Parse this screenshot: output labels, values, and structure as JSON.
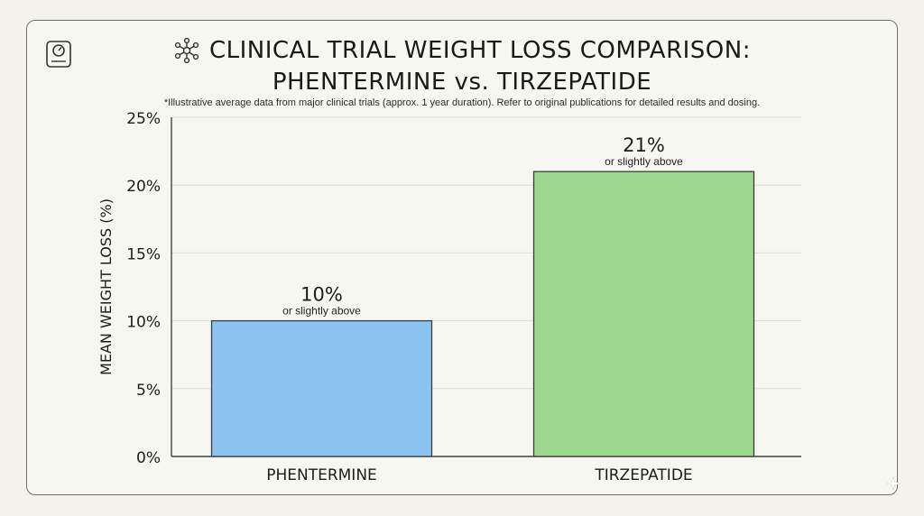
{
  "header": {
    "title_line1": "CLINICAL TRIAL WEIGHT LOSS COMPARISON:",
    "title_line2": "PHENTERMINE vs. TIRZEPATIDE",
    "subtitle": "*Illustrative average data from major clinical trials (approx. 1 year duration). Refer to original publications for detailed results and dosing."
  },
  "icons": {
    "corner": "weighing-scale-icon",
    "title": "molecule-network-icon"
  },
  "chart_data": {
    "type": "bar",
    "title": "CLINICAL TRIAL WEIGHT LOSS COMPARISON: PHENTERMINE vs. TIRZEPATIDE",
    "ylabel": "MEAN WEIGHT LOSS (%)",
    "xlabel": "",
    "ylim": [
      0,
      25
    ],
    "yticks": [
      0,
      5,
      10,
      15,
      20,
      25
    ],
    "ytick_labels": [
      "0%",
      "5%",
      "10%",
      "15%",
      "20%",
      "25%"
    ],
    "grid": true,
    "categories": [
      "PHENTERMINE",
      "TIRZEPATIDE"
    ],
    "values": [
      10,
      21
    ],
    "value_labels": [
      "10%",
      "21%"
    ],
    "value_sublabels": [
      "or slightly above",
      "or slightly above"
    ],
    "colors": [
      "#8cc5f1",
      "#9dd98d"
    ]
  }
}
